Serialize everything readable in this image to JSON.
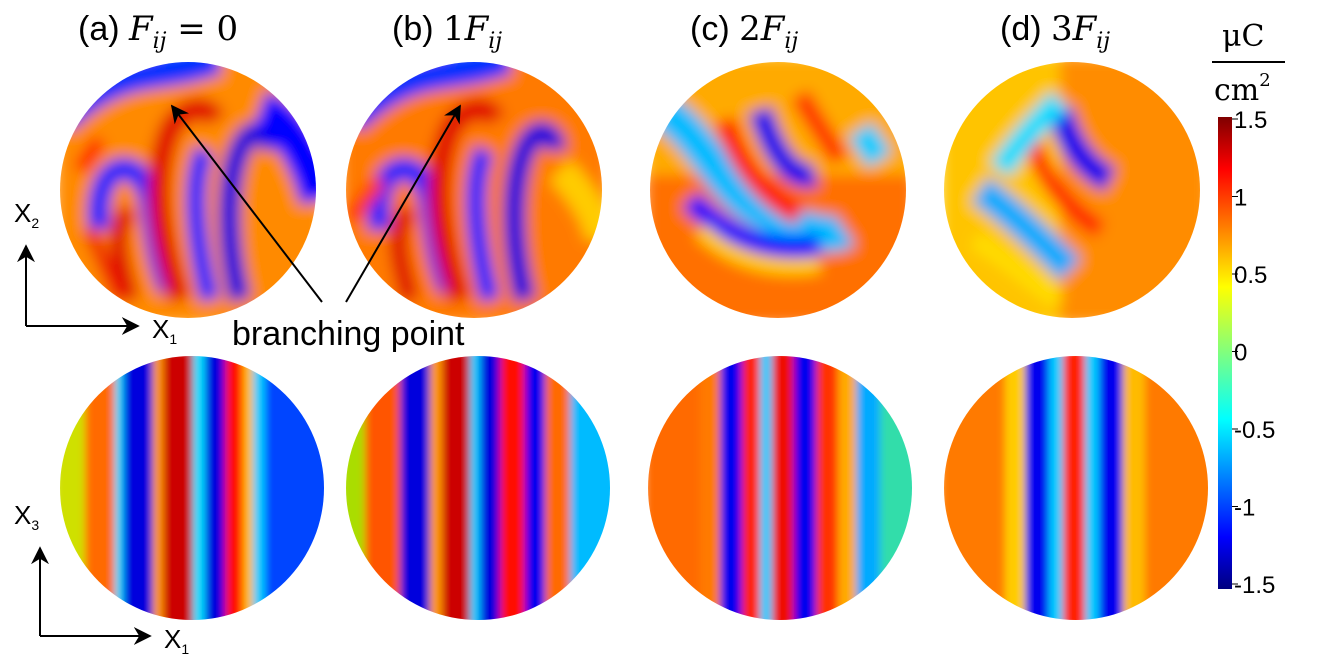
{
  "panels": [
    {
      "prefix": "(a) ",
      "math_main": "F",
      "math_sub": "ij",
      "math_suffix": " = 0"
    },
    {
      "prefix": "(b) ",
      "math_coef": "1",
      "math_main": "F",
      "math_sub": "ij"
    },
    {
      "prefix": "(c) ",
      "math_coef": "2",
      "math_main": "F",
      "math_sub": "ij"
    },
    {
      "prefix": "(d) ",
      "math_coef": "3",
      "math_main": "F",
      "math_sub": "ij"
    }
  ],
  "axes": {
    "top": {
      "vertical_main": "X",
      "vertical_sub": "2",
      "horizontal_main": "X",
      "horizontal_sub": "1"
    },
    "bottom": {
      "vertical_main": "X",
      "vertical_sub": "3",
      "horizontal_main": "X",
      "horizontal_sub": "1"
    }
  },
  "annotation": {
    "label": "branching point"
  },
  "colorbar": {
    "unit_numerator": "μC",
    "unit_denominator": "cm",
    "unit_exponent": "2",
    "ticks": [
      "1.5",
      "1",
      "0.5",
      "0",
      "-0.5",
      "-1",
      "-1.5"
    ],
    "colormap": "jet",
    "colors": [
      "#00007f",
      "#0000ff",
      "#007fff",
      "#00ffff",
      "#7fff7f",
      "#ffff00",
      "#ff7f00",
      "#ff0000",
      "#7f0000"
    ]
  }
}
